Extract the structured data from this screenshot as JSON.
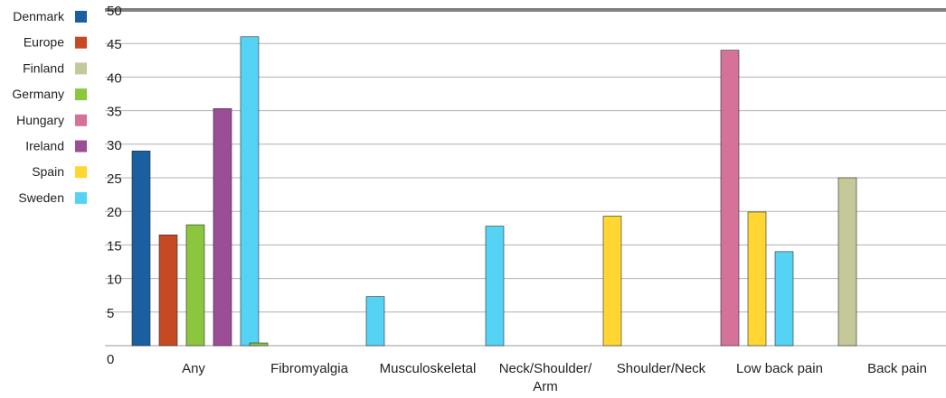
{
  "chart_data": {
    "type": "bar",
    "title": "",
    "xlabel": "",
    "ylabel": "",
    "ylim": [
      0,
      50
    ],
    "yticks": [
      0,
      5,
      10,
      15,
      20,
      25,
      30,
      35,
      40,
      45,
      50
    ],
    "grid": true,
    "legend_position": "left",
    "categories": [
      "Any",
      "Fibromyalgia",
      "Musculoskeletal",
      "Neck/Shoulder/Arm",
      "Shoulder/Neck",
      "Low back pain",
      "Back pain"
    ],
    "category_label_lines": [
      [
        "Any"
      ],
      [
        "Fibromyalgia"
      ],
      [
        "Musculoskeletal"
      ],
      [
        "Neck/Shoulder/",
        "Arm"
      ],
      [
        "Shoulder/Neck"
      ],
      [
        "Low back pain"
      ],
      [
        "Back pain"
      ]
    ],
    "series": [
      {
        "name": "Denmark",
        "color": "#1a5fa0",
        "values": [
          29,
          null,
          null,
          null,
          null,
          null,
          null
        ]
      },
      {
        "name": "Europe",
        "color": "#c54a24",
        "values": [
          16.5,
          null,
          null,
          null,
          null,
          null,
          null
        ]
      },
      {
        "name": "Finland",
        "color": "#c5c99a",
        "values": [
          null,
          null,
          null,
          null,
          null,
          null,
          25
        ]
      },
      {
        "name": "Germany",
        "color": "#8cc63f",
        "values": [
          18,
          0.4,
          null,
          null,
          null,
          null,
          null
        ]
      },
      {
        "name": "Hungary",
        "color": "#d4729a",
        "values": [
          null,
          null,
          null,
          null,
          null,
          44,
          null
        ]
      },
      {
        "name": "Ireland",
        "color": "#9b4d96",
        "values": [
          35.3,
          null,
          null,
          null,
          null,
          null,
          null
        ]
      },
      {
        "name": "Spain",
        "color": "#ffd632",
        "values": [
          null,
          null,
          null,
          null,
          19.3,
          19.9,
          null
        ]
      },
      {
        "name": "Sweden",
        "color": "#55d3f5",
        "values": [
          46,
          null,
          7.3,
          17.8,
          null,
          14,
          null
        ]
      }
    ]
  }
}
